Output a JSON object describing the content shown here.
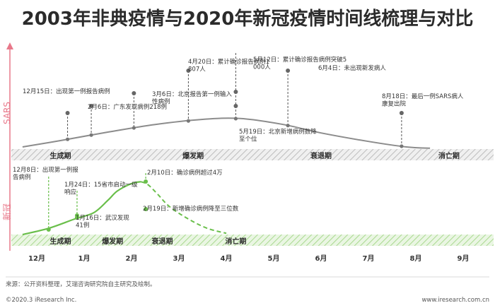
{
  "title": "2003年非典疫情与2020年新冠疫情时间线梳理与对比",
  "source": "来源：公开资料整理，艾瑞咨询研究院自主研究及绘制。",
  "copyright": "©2020.3 iResearch Inc.",
  "website": "www.iresearch.com.cn",
  "colors": {
    "sars": "#8c8c8c",
    "ncov": "#6abf4b",
    "axis_arrow": "#e8788a",
    "sars_label": "#e8788a",
    "stage_text": "#2b2b2b"
  },
  "chart_data": {
    "type": "line",
    "x_axis": {
      "labels": [
        "12月",
        "1月",
        "2月",
        "3月",
        "4月",
        "5月",
        "6月",
        "7月",
        "8月",
        "9月"
      ]
    },
    "row_labels": [
      "SARS",
      "新冠"
    ],
    "series": [
      {
        "name": "SARS",
        "curve_months": [
          -0.3,
          0.5,
          1.5,
          2.5,
          3.5,
          4.3,
          5.2,
          6.0,
          7.0,
          7.8,
          8.3
        ],
        "curve_level": [
          0.05,
          0.2,
          0.4,
          0.58,
          0.7,
          0.72,
          0.58,
          0.38,
          0.18,
          0.05,
          0.02
        ],
        "stages": [
          "生成期",
          "爆发期",
          "衰退期",
          "消亡期"
        ],
        "events": [
          {
            "month": 0.65,
            "date": "12月15日：",
            "text": "出现第一例报告病例"
          },
          {
            "month": 1.15,
            "date": "2月6日：",
            "text": "广东发现病例218例"
          },
          {
            "month": 2.05,
            "date": "3月6日：",
            "text": "北京报告第一例输入性病例"
          },
          {
            "month": 3.2,
            "date": "4月20日：",
            "text": "累计确诊报告病例1807人"
          },
          {
            "month": 4.2,
            "date": "5月12日：",
            "text": "累计确诊报告病例突破5000人"
          },
          {
            "month": 5.3,
            "date": "6月4日：",
            "text": "未出现新发病人"
          },
          {
            "month": 7.7,
            "date": "8月18日：",
            "text": "最后一例SARS病人康复出院"
          },
          {
            "month": 4.2,
            "date": "5月19日：",
            "text": "北京新增病例数降至个位"
          }
        ]
      },
      {
        "name": "新冠",
        "curve_months": [
          -0.3,
          0.25,
          0.8,
          1.2,
          1.5,
          1.7,
          2.0,
          2.2,
          2.35,
          2.55,
          2.8,
          3.2,
          3.6,
          4.0
        ],
        "curve_level": [
          0.0,
          0.1,
          0.25,
          0.35,
          0.55,
          0.7,
          0.82,
          0.85,
          0.8,
          0.65,
          0.45,
          0.25,
          0.1,
          0.02
        ],
        "stages": [
          "生成期",
          "爆发期",
          "衰退期",
          "消亡期"
        ],
        "events": [
          {
            "month": 0.25,
            "date": "12月8日：",
            "text": "出现第一例报告病例"
          },
          {
            "month": 0.85,
            "date": "1月24日：",
            "text": "15省市启动一级响应"
          },
          {
            "month": 0.85,
            "date": "1月16日：",
            "text": "武汉发现41例"
          },
          {
            "month": 2.3,
            "date": "2月10日：",
            "text": "确诊病例超过4万"
          },
          {
            "month": 2.3,
            "date": "2月19日：",
            "text": "新增确诊病例降至三位数"
          }
        ]
      }
    ]
  }
}
